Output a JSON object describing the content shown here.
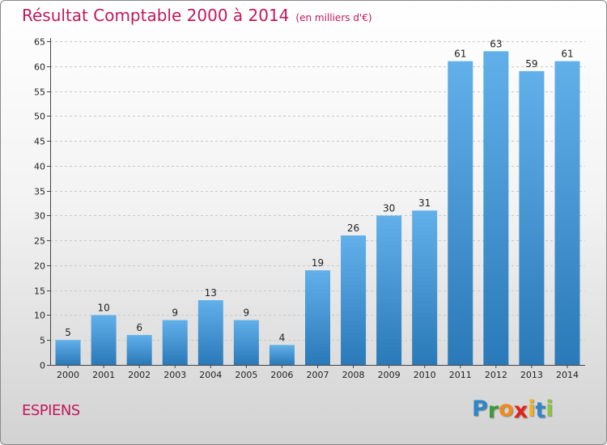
{
  "header": {
    "title": "Résultat Comptable 2000 à 2014",
    "unit": "(en milliers d'€)"
  },
  "footer": {
    "commune": "ESPIENS",
    "logo_letters": [
      "P",
      "r",
      "o",
      "x",
      "i",
      "t",
      "i"
    ],
    "logo_colors": [
      "#2e86c8",
      "#3c9a3c",
      "#f08a1c",
      "#e2231a",
      "#f2b01e",
      "#2e86c8",
      "#8cc63f"
    ]
  },
  "colors": {
    "title": "#c2185b",
    "bar_top": "#62b0ea",
    "bar_bottom": "#2a79b8",
    "grid": "#c8c8c8",
    "axis": "#444444",
    "label": "#222222"
  },
  "chart_data": {
    "type": "bar",
    "title": "Résultat Comptable 2000 à 2014",
    "subtitle": "(en milliers d'€)",
    "categories": [
      "2000",
      "2001",
      "2002",
      "2003",
      "2004",
      "2005",
      "2006",
      "2007",
      "2008",
      "2009",
      "2010",
      "2011",
      "2012",
      "2013",
      "2014"
    ],
    "values": [
      5,
      10,
      6,
      9,
      13,
      9,
      4,
      19,
      26,
      30,
      31,
      61,
      63,
      59,
      61
    ],
    "ylim": [
      0,
      65
    ],
    "yticks": [
      0,
      5,
      10,
      15,
      20,
      25,
      30,
      35,
      40,
      45,
      50,
      55,
      60,
      65
    ],
    "grid": true,
    "data_labels": true
  }
}
